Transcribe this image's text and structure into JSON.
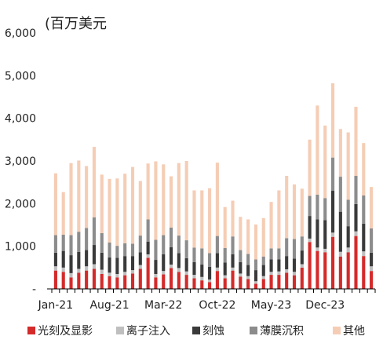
{
  "chart_data": {
    "type": "bar",
    "stacked": true,
    "unit_label": "(百万美元",
    "y_tick_labels": [
      "-",
      "1,000",
      "2,000",
      "3,000",
      "4,000",
      "5,000",
      "6,000"
    ],
    "ylim": [
      0,
      6000
    ],
    "x_tick_labels": [
      "Jan-21",
      "Aug-21",
      "Mar-22",
      "Oct-22",
      "May-23",
      "Dec-23"
    ],
    "x_tick_category_index": [
      0,
      7,
      14,
      21,
      28,
      35
    ],
    "grid": false,
    "legend_position": "bottom",
    "categories": [
      "2021-01",
      "2021-02",
      "2021-03",
      "2021-04",
      "2021-05",
      "2021-06",
      "2021-07",
      "2021-08",
      "2021-09",
      "2021-10",
      "2021-11",
      "2021-12",
      "2022-01",
      "2022-02",
      "2022-03",
      "2022-04",
      "2022-05",
      "2022-06",
      "2022-07",
      "2022-08",
      "2022-09",
      "2022-10",
      "2022-11",
      "2022-12",
      "2023-01",
      "2023-02",
      "2023-03",
      "2023-04",
      "2023-05",
      "2023-06",
      "2023-07",
      "2023-08",
      "2023-09",
      "2023-10",
      "2023-11",
      "2023-12",
      "2024-01",
      "2024-02",
      "2024-03",
      "2024-04",
      "2024-05",
      "2024-06"
    ],
    "series": [
      {
        "name": "光刻及显影",
        "color": "#d42a2a",
        "values": [
          430,
          400,
          270,
          380,
          430,
          470,
          350,
          300,
          270,
          320,
          360,
          470,
          730,
          270,
          340,
          490,
          400,
          330,
          250,
          200,
          160,
          420,
          250,
          430,
          290,
          230,
          120,
          230,
          330,
          330,
          380,
          320,
          500,
          1100,
          890,
          860,
          1220,
          760,
          860,
          1240,
          770,
          420
        ]
      },
      {
        "name": "离子注入",
        "color": "#bfbfbf",
        "values": [
          100,
          100,
          100,
          90,
          100,
          110,
          100,
          80,
          80,
          80,
          80,
          90,
          80,
          80,
          80,
          80,
          90,
          80,
          80,
          80,
          60,
          80,
          70,
          70,
          70,
          70,
          60,
          70,
          70,
          80,
          80,
          80,
          80,
          80,
          80,
          80,
          100,
          110,
          110,
          110,
          110,
          110
        ]
      },
      {
        "name": "刻蚀",
        "color": "#3a3a3a",
        "values": [
          320,
          390,
          420,
          400,
          380,
          450,
          400,
          360,
          380,
          370,
          330,
          300,
          300,
          330,
          390,
          410,
          350,
          310,
          300,
          290,
          300,
          340,
          300,
          310,
          270,
          260,
          260,
          260,
          290,
          280,
          310,
          310,
          320,
          530,
          660,
          670,
          980,
          940,
          500,
          640,
          650,
          320
        ]
      },
      {
        "name": "薄膜沉积",
        "color": "#8c8c8c",
        "values": [
          410,
          380,
          470,
          470,
          520,
          650,
          460,
          350,
          280,
          300,
          290,
          390,
          520,
          470,
          450,
          460,
          410,
          420,
          340,
          380,
          320,
          400,
          340,
          420,
          280,
          260,
          250,
          200,
          260,
          260,
          420,
          460,
          330,
          470,
          580,
          520,
          780,
          820,
          620,
          660,
          660,
          570
        ]
      },
      {
        "name": "其他",
        "color": "#f5cdb5",
        "values": [
          1450,
          1000,
          1690,
          1670,
          1450,
          1650,
          1370,
          1490,
          1580,
          1630,
          1800,
          1280,
          1310,
          1840,
          1660,
          1200,
          1700,
          1860,
          1340,
          1360,
          1520,
          1720,
          960,
          840,
          780,
          810,
          820,
          900,
          1090,
          1360,
          1460,
          1280,
          1120,
          1320,
          2090,
          1700,
          1740,
          1120,
          1580,
          1620,
          1230,
          970
        ]
      }
    ]
  }
}
